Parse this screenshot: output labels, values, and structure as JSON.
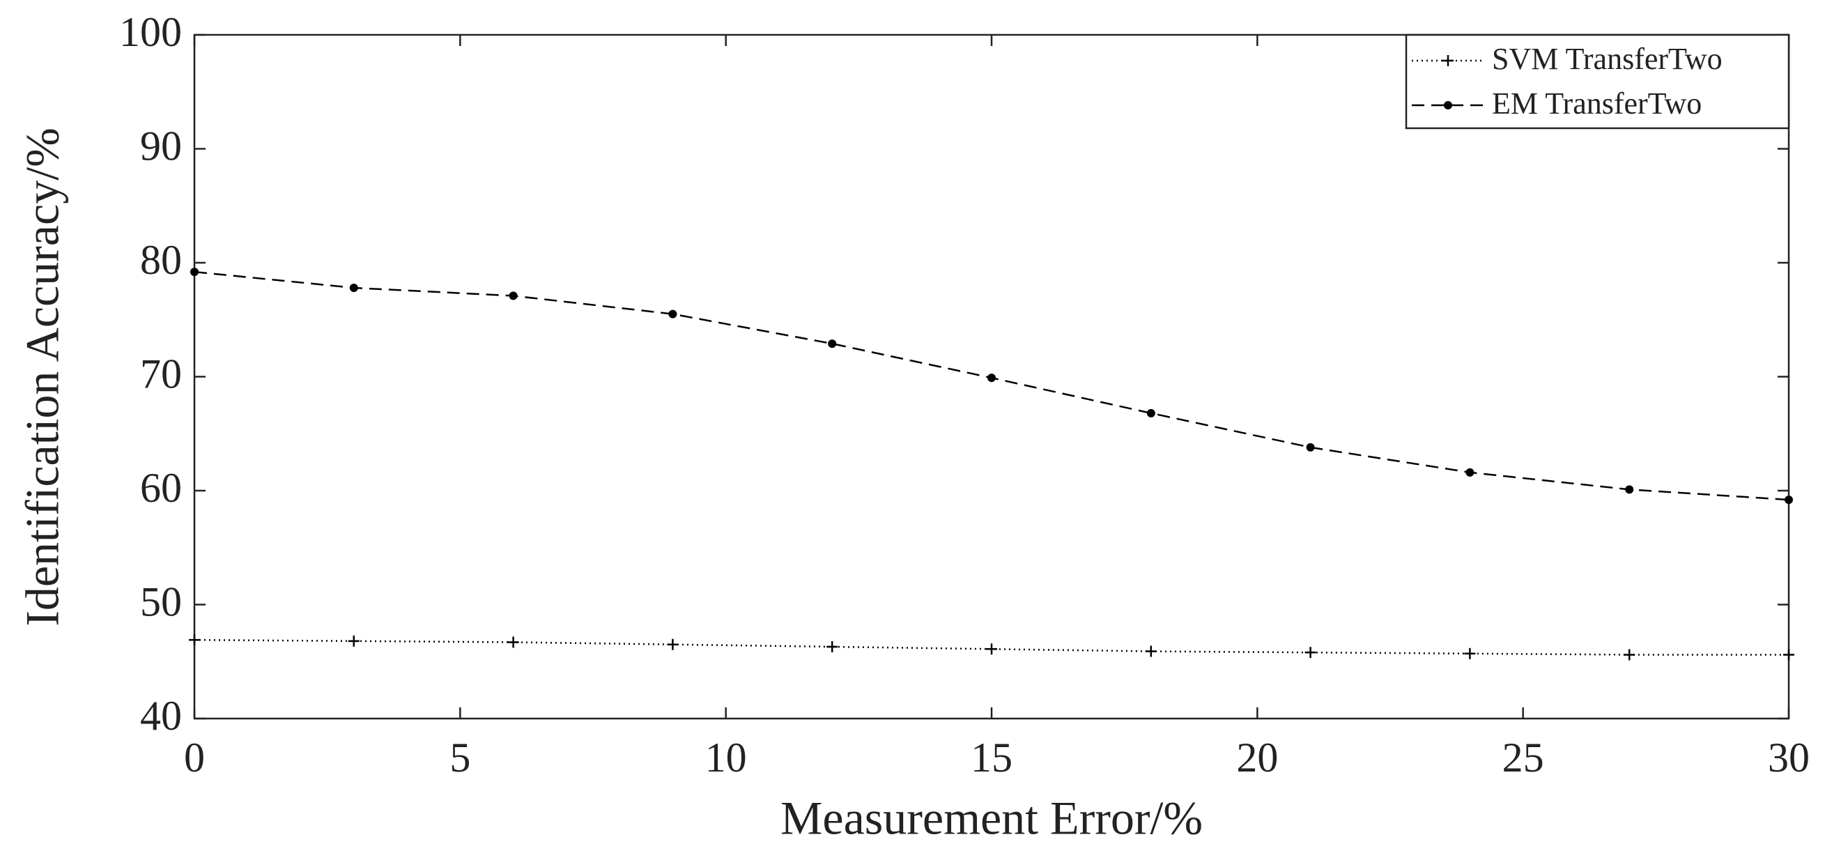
{
  "chart_data": {
    "type": "line",
    "x_label": "Measurement Error/%",
    "y_label": "Identification Accuracy/%",
    "x": [
      0,
      3,
      6,
      9,
      12,
      15,
      18,
      21,
      24,
      27,
      30
    ],
    "series": [
      {
        "name": "SVM TransferTwo",
        "color": "#000000",
        "linestyle": "dotted",
        "marker": "plus",
        "values": [
          46.9,
          46.8,
          46.7,
          46.5,
          46.3,
          46.1,
          45.9,
          45.8,
          45.7,
          45.6,
          45.6
        ]
      },
      {
        "name": "EM TransferTwo",
        "color": "#000000",
        "linestyle": "dashed",
        "marker": "dot",
        "values": [
          79.2,
          77.8,
          77.1,
          75.5,
          72.9,
          69.9,
          66.8,
          63.8,
          61.6,
          60.1,
          59.2
        ]
      }
    ],
    "xlim": [
      0,
      30
    ],
    "xticks": [
      0,
      5,
      10,
      15,
      20,
      25,
      30
    ],
    "ylim": [
      40,
      100
    ],
    "yticks": [
      40,
      50,
      60,
      70,
      80,
      90,
      100
    ],
    "grid": false,
    "legend": "upper right"
  }
}
